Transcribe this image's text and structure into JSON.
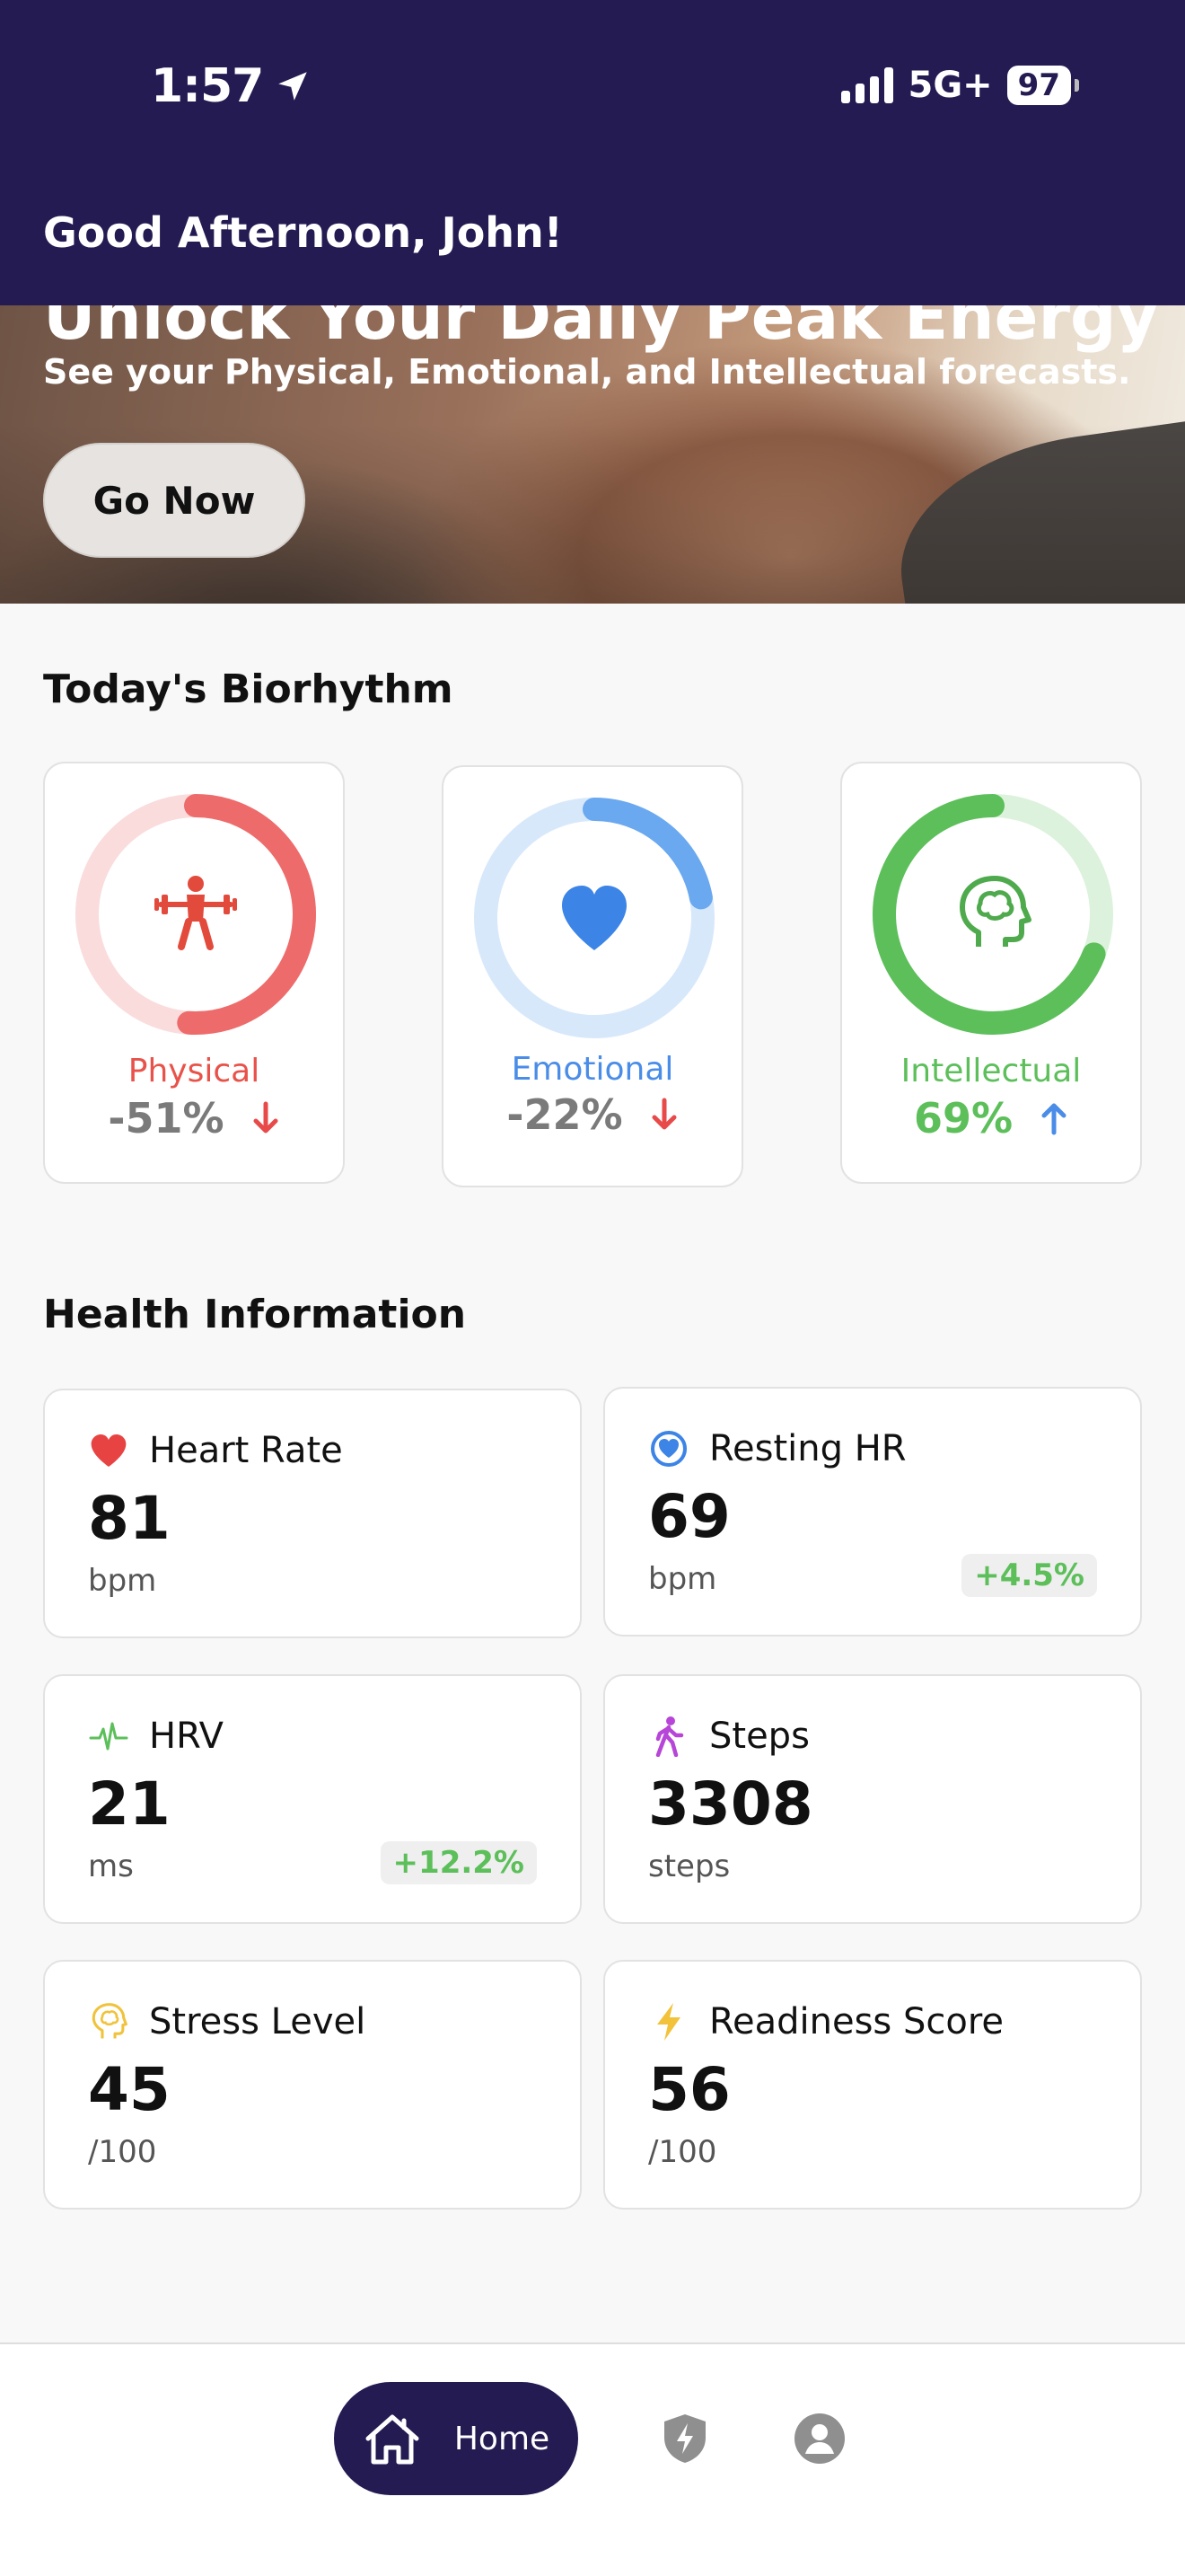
{
  "status_bar": {
    "time": "1:57",
    "network": "5G+",
    "battery": "97"
  },
  "header": {
    "greeting": "Good Afternoon, John!"
  },
  "hero": {
    "title": "Unlock Your Daily Peak Energy",
    "subtitle": "See your Physical, Emotional, and Intellectual forecasts.",
    "button_label": "Go Now"
  },
  "biorhythm": {
    "title": "Today's Biorhythm",
    "items": [
      {
        "label": "Physical",
        "value": "-51%",
        "trend": "down",
        "percent": -51,
        "color": "#ee6b6b",
        "track": "#fadcdc",
        "icon": "weightlifter-icon"
      },
      {
        "label": "Emotional",
        "value": "-22%",
        "trend": "down",
        "percent": -22,
        "color": "#6aa9ef",
        "track": "#d8e8fb",
        "icon": "heart-icon"
      },
      {
        "label": "Intellectual",
        "value": "69%",
        "trend": "up",
        "percent": 69,
        "color": "#5cbf5a",
        "track": "#dcf2dc",
        "icon": "brain-head-icon"
      }
    ]
  },
  "health": {
    "title": "Health Information",
    "cards": [
      {
        "title": "Heart Rate",
        "value": "81",
        "unit": "bpm",
        "badge": "",
        "icon": "heart-icon"
      },
      {
        "title": "Resting HR",
        "value": "69",
        "unit": "bpm",
        "badge": "+4.5%",
        "icon": "heart-circle-icon"
      },
      {
        "title": "HRV",
        "value": "21",
        "unit": "ms",
        "badge": "+12.2%",
        "icon": "pulse-icon"
      },
      {
        "title": "Steps",
        "value": "3308",
        "unit": "steps",
        "badge": "",
        "icon": "walking-icon"
      },
      {
        "title": "Stress Level",
        "value": "45",
        "unit": "/100",
        "badge": "",
        "icon": "brain-head-icon"
      },
      {
        "title": "Readiness Score",
        "value": "56",
        "unit": "/100",
        "badge": "",
        "icon": "lightning-icon"
      }
    ]
  },
  "nav": {
    "home_label": "Home"
  },
  "colors": {
    "brand": "#231b52",
    "positive": "#5cbf5a",
    "negative": "#e84a4a",
    "up_arrow": "#4a8de8"
  }
}
